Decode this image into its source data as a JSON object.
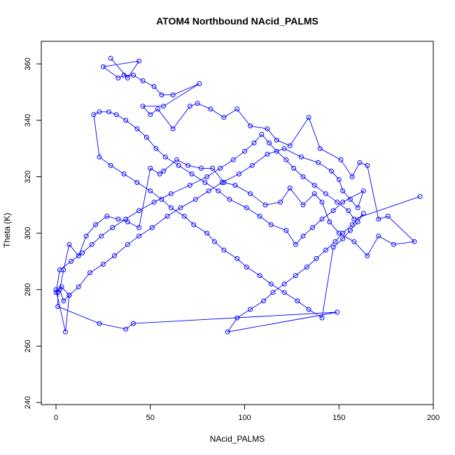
{
  "chart_data": {
    "type": "line",
    "title": "ATOM4 Northbound NAcid_PALMS",
    "xlabel": "NAcid_PALMS",
    "ylabel": "Theta (K)",
    "xlim": [
      0,
      200
    ],
    "ylim": [
      240,
      368
    ],
    "xticks": [
      0,
      50,
      100,
      150,
      200
    ],
    "yticks": [
      240,
      260,
      280,
      300,
      320,
      340,
      360
    ],
    "grid": false,
    "legend": "none",
    "colors": {
      "series": "#0000ff",
      "axis": "#000000"
    },
    "markers": "open-circle",
    "series": [
      {
        "x": [
          29,
          38,
          44,
          25,
          33,
          36,
          41,
          46,
          52,
          56,
          62,
          76,
          57,
          46,
          50,
          54,
          62,
          71,
          75,
          82,
          89,
          96,
          103,
          112,
          117,
          124,
          134,
          140,
          151,
          157,
          161,
          165,
          171,
          176,
          190,
          179,
          171,
          165,
          158,
          150,
          145,
          141,
          137,
          131,
          124,
          119,
          111,
          103,
          95,
          89,
          83,
          77,
          70,
          64,
          57,
          55,
          50,
          44,
          38,
          33,
          27,
          21,
          16,
          12,
          7,
          4,
          2,
          4,
          7,
          12,
          18,
          25,
          31,
          38,
          44,
          51,
          59,
          66,
          74,
          81,
          88,
          97,
          104,
          112,
          121,
          130,
          139,
          146,
          150,
          152,
          156,
          160,
          163,
          152,
          147,
          141,
          136,
          131,
          127,
          122,
          114,
          108,
          101,
          92,
          86,
          79,
          72,
          65,
          58,
          53,
          48,
          43,
          37,
          32,
          28,
          23,
          20,
          23,
          29,
          36,
          43,
          50,
          56,
          61,
          68,
          73,
          80,
          84,
          89,
          96,
          101,
          108,
          114,
          121,
          128,
          134,
          141,
          147,
          152,
          156,
          160,
          163,
          157,
          152,
          148,
          143,
          138,
          133,
          127,
          121,
          115,
          110,
          103,
          96,
          91,
          149,
          41,
          37,
          23,
          1,
          1,
          0,
          5,
          7,
          3,
          0,
          2,
          8,
          14,
          19,
          24,
          30,
          37,
          44,
          52,
          61,
          71,
          80,
          87,
          94,
          100,
          105,
          109,
          113,
          117,
          122,
          126,
          131,
          137,
          143,
          149,
          155,
          158,
          193
        ],
        "y": [
          362,
          355,
          361,
          359,
          355,
          356,
          356,
          354,
          352,
          349,
          349,
          353,
          345,
          345,
          342,
          344,
          337,
          345,
          346,
          344,
          341,
          344,
          338,
          337,
          333,
          331,
          341,
          330,
          326,
          320,
          325,
          324,
          305,
          306,
          297,
          296,
          299,
          292,
          297,
          300,
          304,
          311,
          314,
          310,
          316,
          311,
          310,
          314,
          317,
          318,
          323,
          323,
          324,
          326,
          322,
          321,
          323,
          302,
          304,
          305,
          306,
          303,
          299,
          292,
          296,
          287,
          280,
          276,
          278,
          281,
          286,
          289,
          292,
          296,
          299,
          302,
          306,
          309,
          312,
          315,
          318,
          321,
          324,
          328,
          330,
          327,
          325,
          322,
          319,
          315,
          312,
          309,
          315,
          311,
          308,
          305,
          302,
          299,
          296,
          301,
          303,
          306,
          309,
          312,
          315,
          318,
          321,
          324,
          327,
          330,
          334,
          337,
          340,
          342,
          343,
          343,
          342,
          327,
          324,
          321,
          318,
          315,
          312,
          309,
          306,
          303,
          300,
          297,
          294,
          291,
          288,
          285,
          282,
          279,
          276,
          273,
          270,
          295,
          298,
          301,
          304,
          307,
          303,
          300,
          297,
          294,
          291,
          288,
          285,
          282,
          279,
          276,
          273,
          270,
          265,
          272,
          268,
          266,
          268,
          274,
          279,
          280,
          265,
          278,
          281,
          279,
          287,
          290,
          293,
          296,
          299,
          302,
          305,
          308,
          311,
          314,
          317,
          320,
          323,
          326,
          329,
          332,
          335,
          332,
          329,
          326,
          323,
          320,
          317,
          314,
          311,
          308,
          305,
          313
        ]
      }
    ]
  }
}
